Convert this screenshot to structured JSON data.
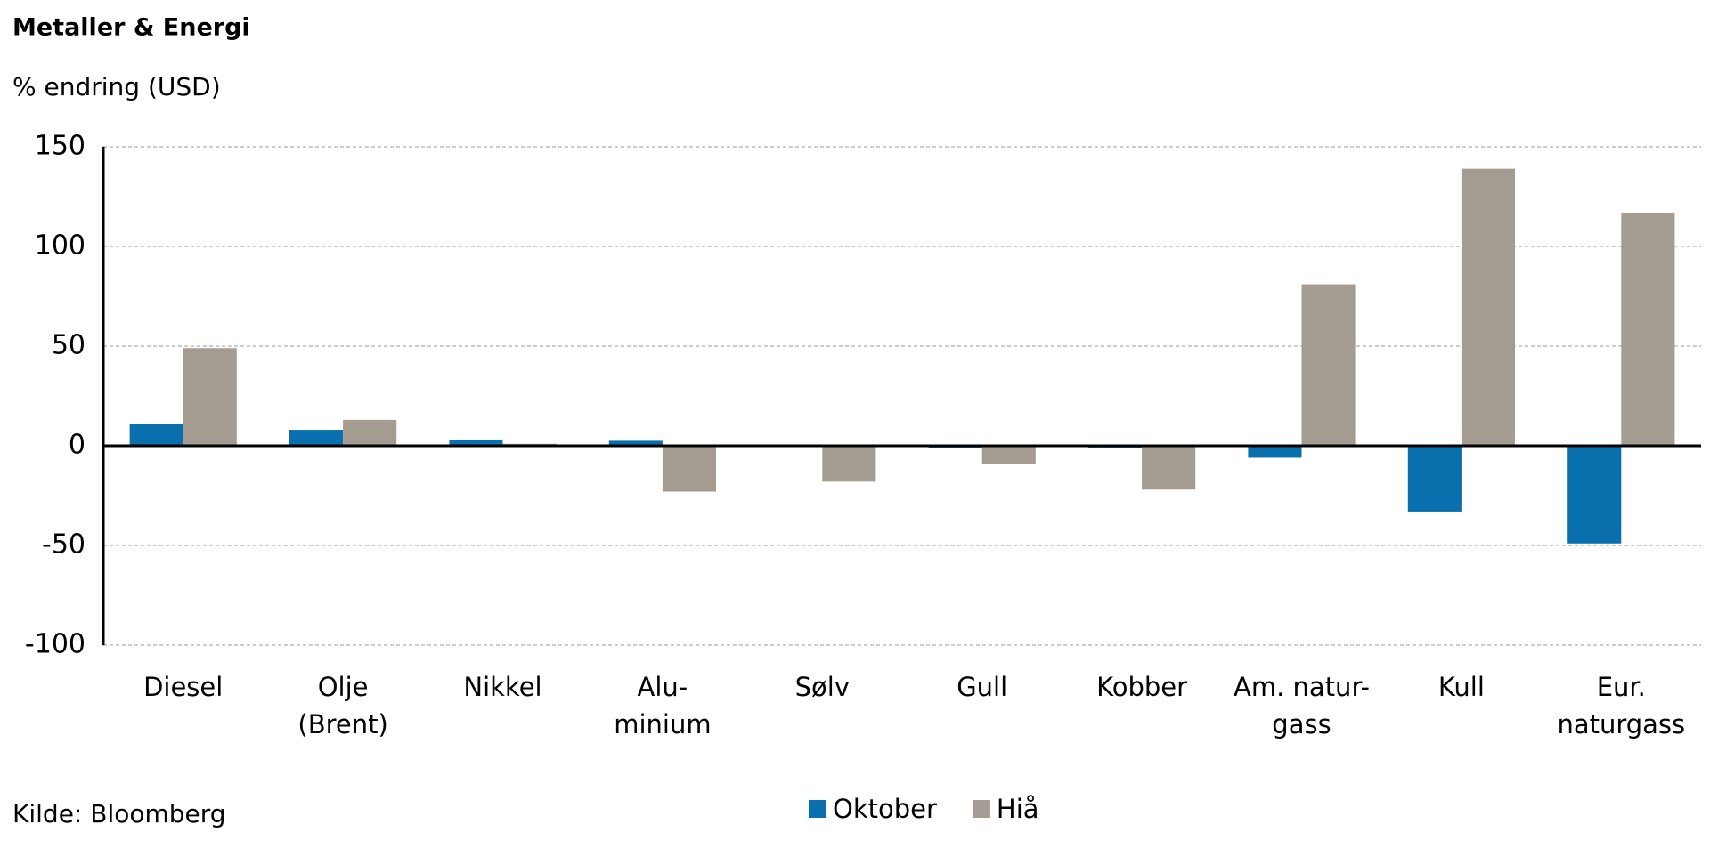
{
  "chart_data": {
    "type": "bar",
    "title": "Metaller & Energi",
    "subtitle": "% endring (USD)",
    "source": "Kilde: Bloomberg",
    "categories": [
      [
        "Diesel"
      ],
      [
        "Olje",
        "(Brent)"
      ],
      [
        "Nikkel"
      ],
      [
        "Alu-",
        "minium"
      ],
      [
        "Sølv"
      ],
      [
        "Gull"
      ],
      [
        "Kobber"
      ],
      [
        "Am. natur-",
        "gass"
      ],
      [
        "Kull"
      ],
      [
        "Eur.",
        "naturgass"
      ]
    ],
    "series": [
      {
        "name": "Oktober",
        "color": "#0a70ad",
        "values": [
          11,
          8,
          3,
          2.5,
          0,
          -1,
          -1,
          -6,
          -33,
          -49
        ]
      },
      {
        "name": "Hiå",
        "color": "#a49b91",
        "values": [
          49,
          13,
          1,
          -23,
          -18,
          -9,
          -22,
          81,
          139,
          117
        ]
      }
    ],
    "ylim": [
      -100,
      150
    ],
    "yticks": [
      -100,
      -50,
      0,
      50,
      100,
      150
    ],
    "grid": true,
    "legend": "bottom"
  }
}
